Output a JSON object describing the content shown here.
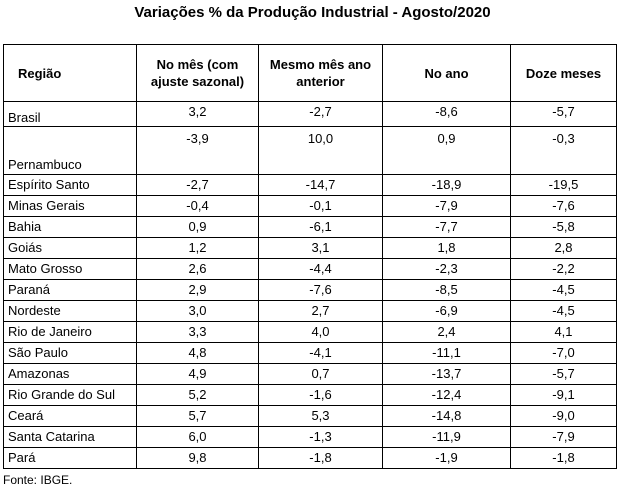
{
  "title": "Variações % da Produção Industrial - Agosto/2020",
  "headers": [
    "Região",
    "No mês (com ajuste sazonal)",
    "Mesmo mês ano anterior",
    "No ano",
    "Doze meses"
  ],
  "rows": [
    [
      "Brasil",
      "3,2",
      "-2,7",
      "-8,6",
      "-5,7"
    ],
    [
      "Pernambuco",
      "-3,9",
      "10,0",
      "0,9",
      "-0,3"
    ],
    [
      "Espírito Santo",
      "-2,7",
      "-14,7",
      "-18,9",
      "-19,5"
    ],
    [
      "Minas Gerais",
      "-0,4",
      "-0,1",
      "-7,9",
      "-7,6"
    ],
    [
      "Bahia",
      "0,9",
      "-6,1",
      "-7,7",
      "-5,8"
    ],
    [
      "Goiás",
      "1,2",
      "3,1",
      "1,8",
      "2,8"
    ],
    [
      "Mato Grosso",
      "2,6",
      "-4,4",
      "-2,3",
      "-2,2"
    ],
    [
      "Paraná",
      "2,9",
      "-7,6",
      "-8,5",
      "-4,5"
    ],
    [
      "Nordeste",
      "3,0",
      "2,7",
      "-6,9",
      "-4,5"
    ],
    [
      "Rio de Janeiro",
      "3,3",
      "4,0",
      "2,4",
      "4,1"
    ],
    [
      "São Paulo",
      "4,8",
      "-4,1",
      "-11,1",
      "-7,0"
    ],
    [
      "Amazonas",
      "4,9",
      "0,7",
      "-13,7",
      "-5,7"
    ],
    [
      "Rio Grande do Sul",
      "5,2",
      "-1,6",
      "-12,4",
      "-9,1"
    ],
    [
      "Ceará",
      "5,7",
      "5,3",
      "-14,8",
      "-9,0"
    ],
    [
      "Santa Catarina",
      "6,0",
      "-1,3",
      "-11,9",
      "-7,9"
    ],
    [
      "Pará",
      "9,8",
      "-1,8",
      "-1,9",
      "-1,8"
    ]
  ],
  "source": "Fonte: IBGE."
}
